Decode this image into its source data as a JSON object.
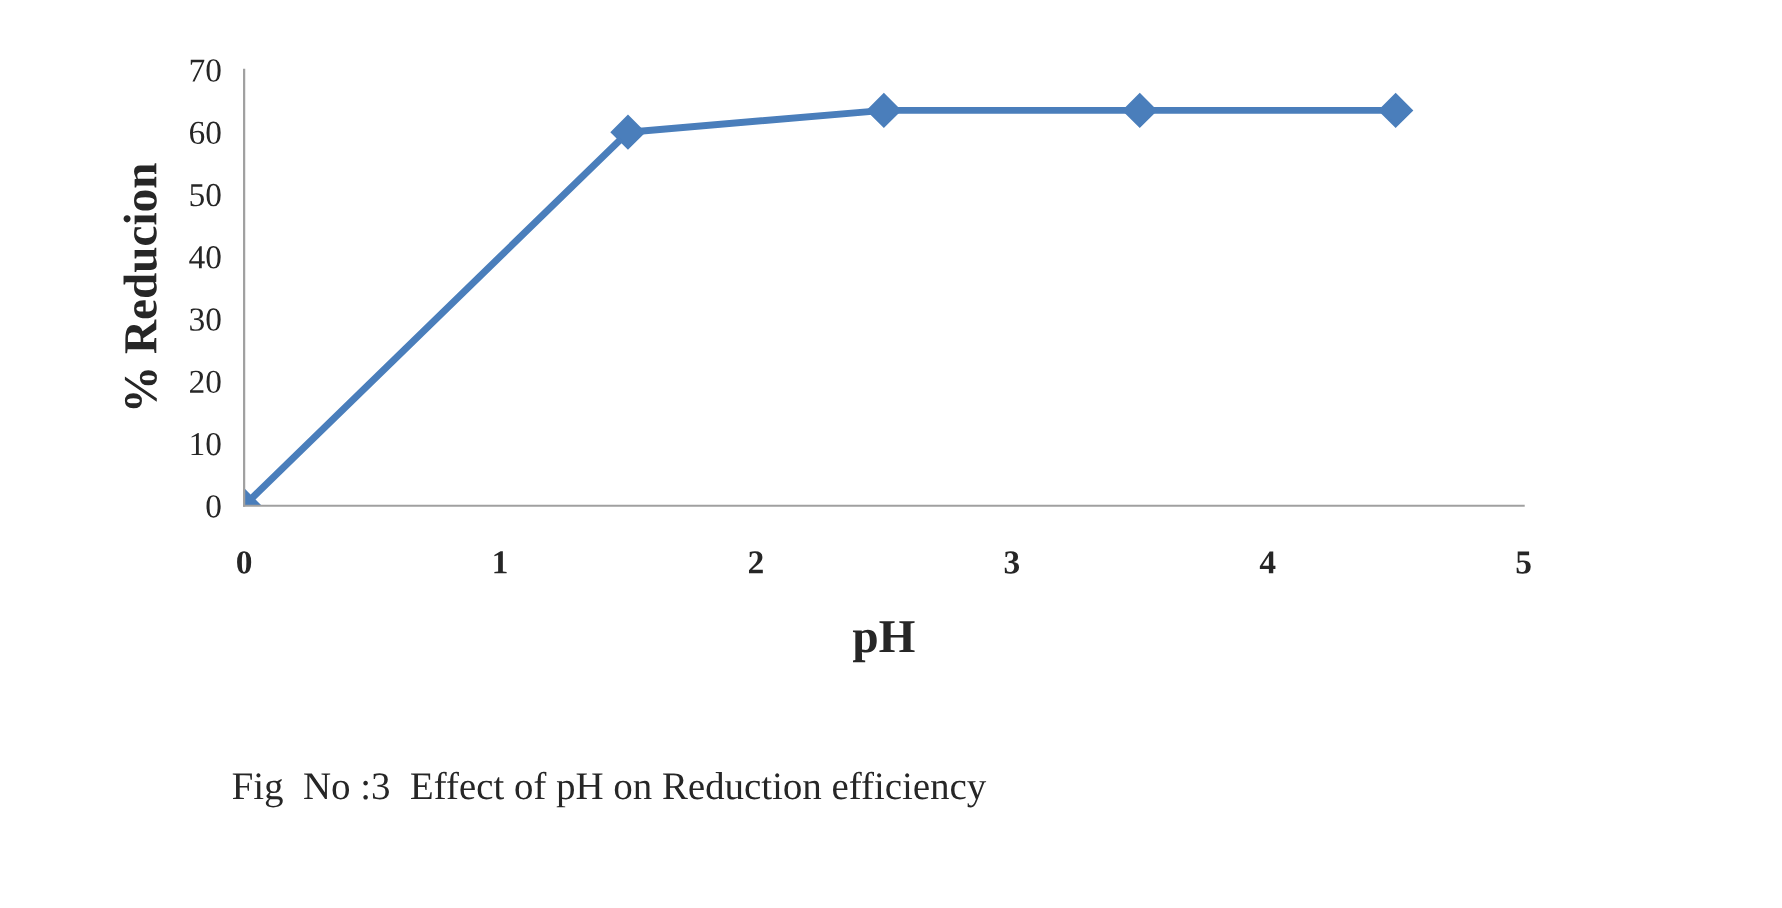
{
  "chart_data": {
    "type": "line",
    "xlabel": "pH",
    "ylabel": "% Reducion",
    "x": [
      0,
      1.5,
      2.5,
      3.5,
      4.5
    ],
    "series": [
      {
        "color": "#4a7ebb",
        "values": [
          0,
          60,
          63.5,
          63.5,
          63.5
        ]
      }
    ],
    "xlim": [
      0,
      5
    ],
    "xticks": [
      0,
      1,
      2,
      3,
      4,
      5
    ],
    "ylim": [
      0,
      70
    ],
    "yticks": [
      0,
      10,
      20,
      30,
      40,
      50,
      60,
      70
    ],
    "marker": "diamond",
    "line_style": "solid",
    "grid": false,
    "legend": false,
    "annotations": [
      "Fig  No :3  Effect of pH on Reduction efficiency"
    ]
  }
}
